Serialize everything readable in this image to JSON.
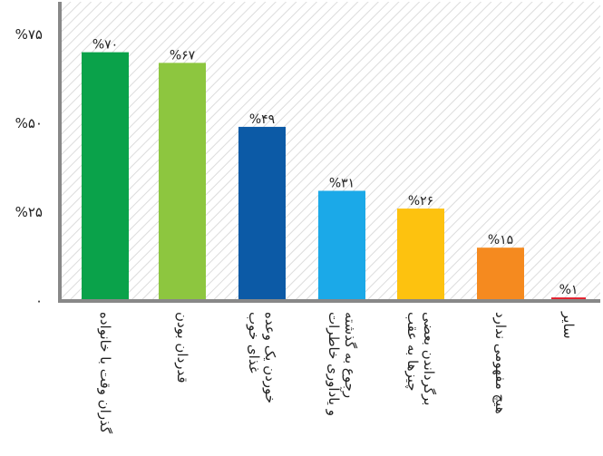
{
  "chart_data": {
    "type": "bar",
    "title": "",
    "xlabel": "",
    "ylabel": "",
    "ylim": [
      0,
      80
    ],
    "yticks": [
      0,
      25,
      50,
      75
    ],
    "ytick_labels": [
      "۰",
      "%۲۵",
      "%۵۰",
      "%۷۵"
    ],
    "grid": false,
    "background": "diagonal-hatch",
    "categories": [
      [
        "گذران وقت با خانواده"
      ],
      [
        "قدردان بودن"
      ],
      [
        "خوردن یک وعده",
        "غذای خوب"
      ],
      [
        "رجوع به گذشته",
        "و یادآوری خاطرات"
      ],
      [
        "برگرداندن بعضی",
        "چیزها به عقب"
      ],
      [
        "هیچ مفهومی ندارد"
      ],
      [
        "سایر"
      ]
    ],
    "values": [
      70,
      67,
      49,
      31,
      26,
      15,
      1
    ],
    "value_labels": [
      "%۷۰",
      "%۶۷",
      "%۴۹",
      "%۳۱",
      "%۲۶",
      "%۱۵",
      "%۱"
    ],
    "colors": [
      "#0aa24a",
      "#8dc63f",
      "#0c5aa6",
      "#1ba9e8",
      "#fdc20f",
      "#f58a1f",
      "#e31e2d"
    ]
  }
}
